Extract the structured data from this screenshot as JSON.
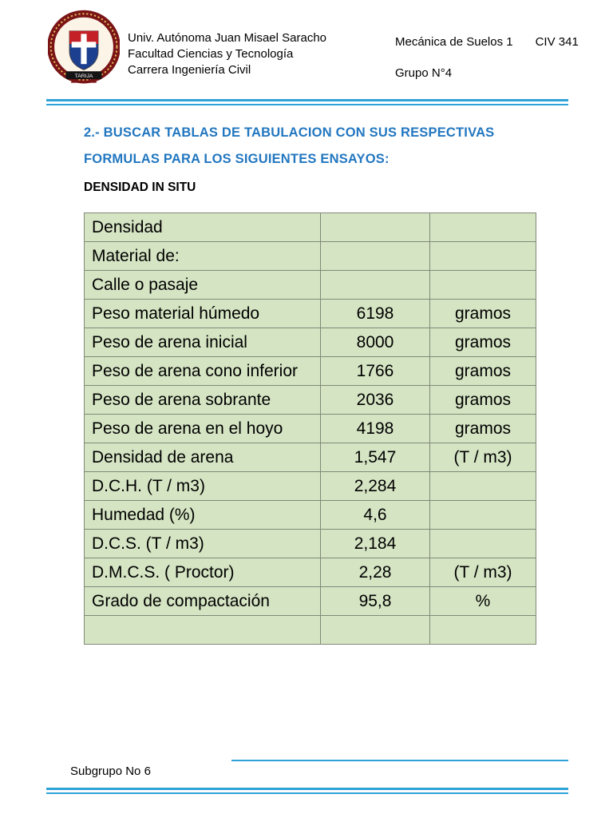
{
  "colors": {
    "accent_line": "#2fa3d8",
    "heading_blue": "#2277c0",
    "table_cell_green": "#d5e4c3",
    "table_border": "#7f8a78"
  },
  "header": {
    "university_lines": [
      "Univ. Autónoma Juan Misael Saracho",
      "Facultad Ciencias y Tecnología",
      "Carrera Ingeniería Civil"
    ],
    "course": "Mecánica de Suelos 1",
    "course_code": "CIV 341",
    "group": "Grupo N°4",
    "logo_banner": "TARIJA",
    "logo_icon": "university-seal-icon"
  },
  "section": {
    "heading_line1": "2.- BUSCAR TABLAS DE TABULACION CON SUS RESPECTIVAS",
    "heading_line2": "FORMULAS PARA LOS SIGUIENTES ENSAYOS:",
    "subheading": "DENSIDAD IN SITU"
  },
  "table": {
    "rows": [
      {
        "label": "Densidad",
        "value": "",
        "unit": ""
      },
      {
        "label": "Material de:",
        "value": "",
        "unit": ""
      },
      {
        "label": "Calle o pasaje",
        "value": "",
        "unit": ""
      },
      {
        "label": "Peso material húmedo",
        "value": "6198",
        "unit": "gramos"
      },
      {
        "label": "Peso de arena inicial",
        "value": "8000",
        "unit": "gramos"
      },
      {
        "label": "Peso de arena cono inferior",
        "value": "1766",
        "unit": "gramos"
      },
      {
        "label": "Peso de arena sobrante",
        "value": "2036",
        "unit": "gramos"
      },
      {
        "label": "Peso de arena en el hoyo",
        "value": "4198",
        "unit": "gramos"
      },
      {
        "label": "Densidad de arena",
        "value": "1,547",
        "unit": "(T / m3)"
      },
      {
        "label": "D.C.H. (T / m3)",
        "value": "2,284",
        "unit": ""
      },
      {
        "label": "Humedad (%)",
        "value": "4,6",
        "unit": ""
      },
      {
        "label": "D.C.S. (T / m3)",
        "value": "2,184",
        "unit": ""
      },
      {
        "label": "D.M.C.S. ( Proctor)",
        "value": "2,28",
        "unit": "(T / m3)"
      },
      {
        "label": "Grado de compactación",
        "value": "95,8",
        "unit": "%"
      },
      {
        "label": "",
        "value": "",
        "unit": ""
      }
    ]
  },
  "footer": {
    "text": "Subgrupo No 6"
  }
}
